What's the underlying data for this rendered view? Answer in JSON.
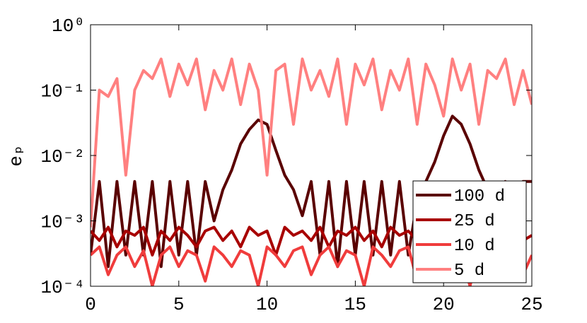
{
  "chart_data": {
    "type": "line",
    "y_label": "eₚ",
    "log_y": true,
    "legend_corner": "lower right",
    "xlim": [
      0,
      25
    ],
    "ylim": [
      0.0001,
      1
    ],
    "xticks": [
      0,
      5,
      10,
      15,
      20,
      25
    ],
    "yticks": [
      {
        "value": 0.0001,
        "label": "10⁻⁴"
      },
      {
        "value": 0.001,
        "label": "10⁻³"
      },
      {
        "value": 0.01,
        "label": "10⁻²"
      },
      {
        "value": 0.1,
        "label": "10⁻¹"
      },
      {
        "value": 1,
        "label": "10⁰"
      }
    ],
    "x": [
      0,
      0.5,
      1,
      1.5,
      2,
      2.5,
      3,
      3.5,
      4,
      4.5,
      5,
      5.5,
      6,
      6.5,
      7,
      7.5,
      8,
      8.5,
      9,
      9.5,
      10,
      10.5,
      11,
      11.5,
      12,
      12.5,
      13,
      13.5,
      14,
      14.5,
      15,
      15.5,
      16,
      16.5,
      17,
      17.5,
      18,
      18.5,
      19,
      19.5,
      20,
      20.5,
      21,
      21.5,
      22,
      22.5,
      23,
      23.5,
      24,
      24.5,
      25
    ],
    "series": [
      {
        "name": "100 d",
        "color": "#5a0000",
        "values": [
          0.0003,
          0.004,
          0.0002,
          0.004,
          0.0003,
          0.004,
          0.0003,
          0.004,
          0.0002,
          0.004,
          0.0003,
          0.004,
          0.0003,
          0.004,
          0.001,
          0.003,
          0.006,
          0.015,
          0.025,
          0.035,
          0.03,
          0.012,
          0.005,
          0.003,
          0.0012,
          0.004,
          0.0003,
          0.004,
          0.0002,
          0.004,
          0.0003,
          0.004,
          0.0003,
          0.004,
          0.0003,
          0.004,
          0.0003,
          0.002,
          0.004,
          0.008,
          0.02,
          0.04,
          0.03,
          0.015,
          0.006,
          0.003,
          0.0004,
          0.004,
          0.0003,
          0.004,
          0.004
        ]
      },
      {
        "name": "25 d",
        "color": "#a80000",
        "values": [
          0.0007,
          0.0005,
          0.0008,
          0.0004,
          0.0007,
          0.0006,
          0.0008,
          0.0003,
          0.0007,
          0.0005,
          0.0008,
          0.0006,
          0.0004,
          0.0007,
          0.0008,
          0.0005,
          0.0007,
          0.0004,
          0.0008,
          0.0006,
          0.0007,
          0.0003,
          0.0008,
          0.0006,
          0.0007,
          0.0005,
          0.0008,
          0.0004,
          0.0007,
          0.0006,
          0.0008,
          0.0005,
          0.0007,
          0.0004,
          0.0008,
          0.0006,
          0.0007,
          0.0005,
          0.0008,
          0.0003,
          0.0007,
          0.0006,
          0.0008,
          0.0005,
          0.0007,
          0.0004,
          0.0008,
          0.0006,
          0.0007,
          0.0005,
          0.0006
        ]
      },
      {
        "name": "10 d",
        "color": "#f03c3c",
        "values": [
          0.0003,
          0.0004,
          0.00015,
          0.0003,
          0.0004,
          0.0002,
          0.00035,
          0.0001,
          0.0003,
          0.0004,
          0.0002,
          0.00035,
          0.0003,
          0.00012,
          0.0004,
          0.0003,
          0.0002,
          0.00035,
          0.0003,
          0.0001,
          0.0004,
          0.0003,
          0.0002,
          0.00035,
          0.0004,
          0.00015,
          0.0003,
          0.0004,
          0.0002,
          0.00035,
          0.0003,
          0.0001,
          0.0004,
          0.0003,
          0.0002,
          0.00035,
          0.0004,
          0.00012,
          0.0003,
          0.0004,
          0.0002,
          0.00035,
          0.0003,
          0.0001,
          0.0004,
          0.0003,
          0.0002,
          0.00035,
          0.0004,
          0.00015,
          0.0003
        ]
      },
      {
        "name": "5 d",
        "color": "#ff8080",
        "values": [
          0.0008,
          0.1,
          0.08,
          0.15,
          0.005,
          0.1,
          0.2,
          0.15,
          0.3,
          0.08,
          0.25,
          0.12,
          0.3,
          0.05,
          0.2,
          0.1,
          0.3,
          0.06,
          0.25,
          0.1,
          0.005,
          0.2,
          0.25,
          0.03,
          0.3,
          0.1,
          0.2,
          0.08,
          0.3,
          0.03,
          0.25,
          0.12,
          0.3,
          0.05,
          0.2,
          0.1,
          0.3,
          0.03,
          0.25,
          0.12,
          0.04,
          0.3,
          0.1,
          0.25,
          0.03,
          0.2,
          0.15,
          0.3,
          0.06,
          0.2,
          0.06
        ]
      }
    ]
  }
}
